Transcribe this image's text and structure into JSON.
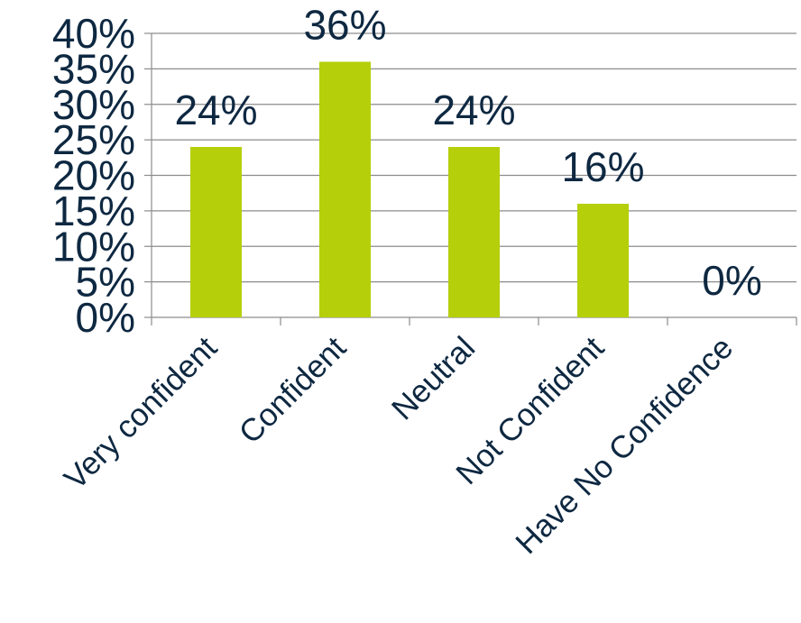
{
  "chart_data": {
    "type": "bar",
    "categories": [
      "Very confident",
      "Confident",
      "Neutral",
      "Not Confident",
      "Have No Confidence"
    ],
    "values": [
      24,
      36,
      24,
      16,
      0
    ],
    "data_labels": [
      "24%",
      "36%",
      "24%",
      "16%",
      "0%"
    ],
    "ylim": [
      0,
      40
    ],
    "yticks": [
      0,
      5,
      10,
      15,
      20,
      25,
      30,
      35,
      40
    ],
    "ytick_labels": [
      "0%",
      "5%",
      "10%",
      "15%",
      "20%",
      "25%",
      "30%",
      "35%",
      "40%"
    ],
    "grid": true,
    "legend": "none"
  },
  "colors": {
    "bar": "#b5cf0a",
    "text": "#0e2841",
    "grid": "#8c8c8c",
    "axis": "#8c8c8c"
  }
}
